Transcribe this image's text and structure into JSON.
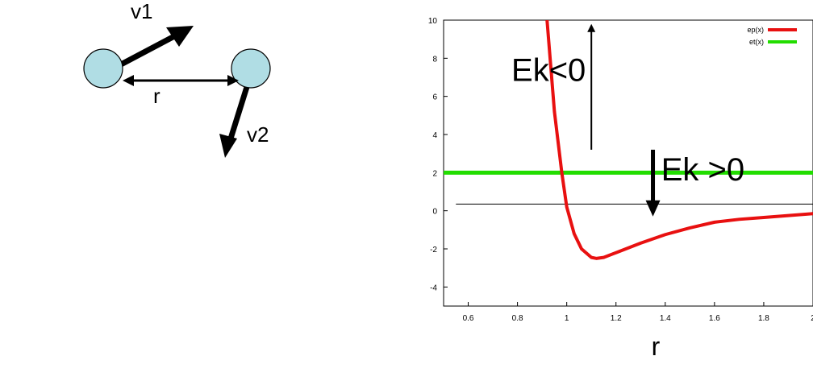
{
  "diagram": {
    "v1_label": "v1",
    "v2_label": "v2",
    "r_label": "r",
    "particle_color": "#b0dde4"
  },
  "chart_data": {
    "type": "line",
    "xlim": [
      0.5,
      2.0
    ],
    "ylim": [
      -5,
      10
    ],
    "x_ticks": [
      "0.6",
      "0.8",
      "1",
      "1.2",
      "1.4",
      "1.6",
      "1.8",
      "2"
    ],
    "y_ticks": [
      "10",
      "8",
      "6",
      "4",
      "2",
      "0",
      "-2",
      "-4"
    ],
    "xlabel": "r",
    "legend_position": "top-right",
    "series": [
      {
        "name": "ep(x)",
        "color": "#e81010",
        "x": [
          0.92,
          0.95,
          0.98,
          1.0,
          1.03,
          1.06,
          1.1,
          1.12,
          1.15,
          1.2,
          1.3,
          1.4,
          1.5,
          1.6,
          1.7,
          1.8,
          1.9,
          2.0
        ],
        "y": [
          10.0,
          5.2,
          2.0,
          0.2,
          -1.2,
          -2.0,
          -2.45,
          -2.5,
          -2.45,
          -2.2,
          -1.7,
          -1.25,
          -0.9,
          -0.6,
          -0.45,
          -0.35,
          -0.25,
          -0.15
        ]
      },
      {
        "name": "et(x)",
        "color": "#22dd00",
        "x": [
          0.5,
          2.0
        ],
        "y": [
          2.0,
          2.0
        ]
      }
    ],
    "zero_line": {
      "x": [
        0.55,
        2.0
      ],
      "y": [
        0.35,
        0.35
      ]
    },
    "annotations": [
      {
        "text": "Ek<0",
        "x": 0.88,
        "y": 7.4
      },
      {
        "text": "Ek >0",
        "x": 1.39,
        "y": 2.1
      }
    ],
    "arrow_up": {
      "x": 1.1,
      "y_from": 3.2,
      "y_to": 9.8
    },
    "arrow_down": {
      "x": 1.35,
      "y_from": 3.2,
      "y_to": -0.3
    }
  }
}
